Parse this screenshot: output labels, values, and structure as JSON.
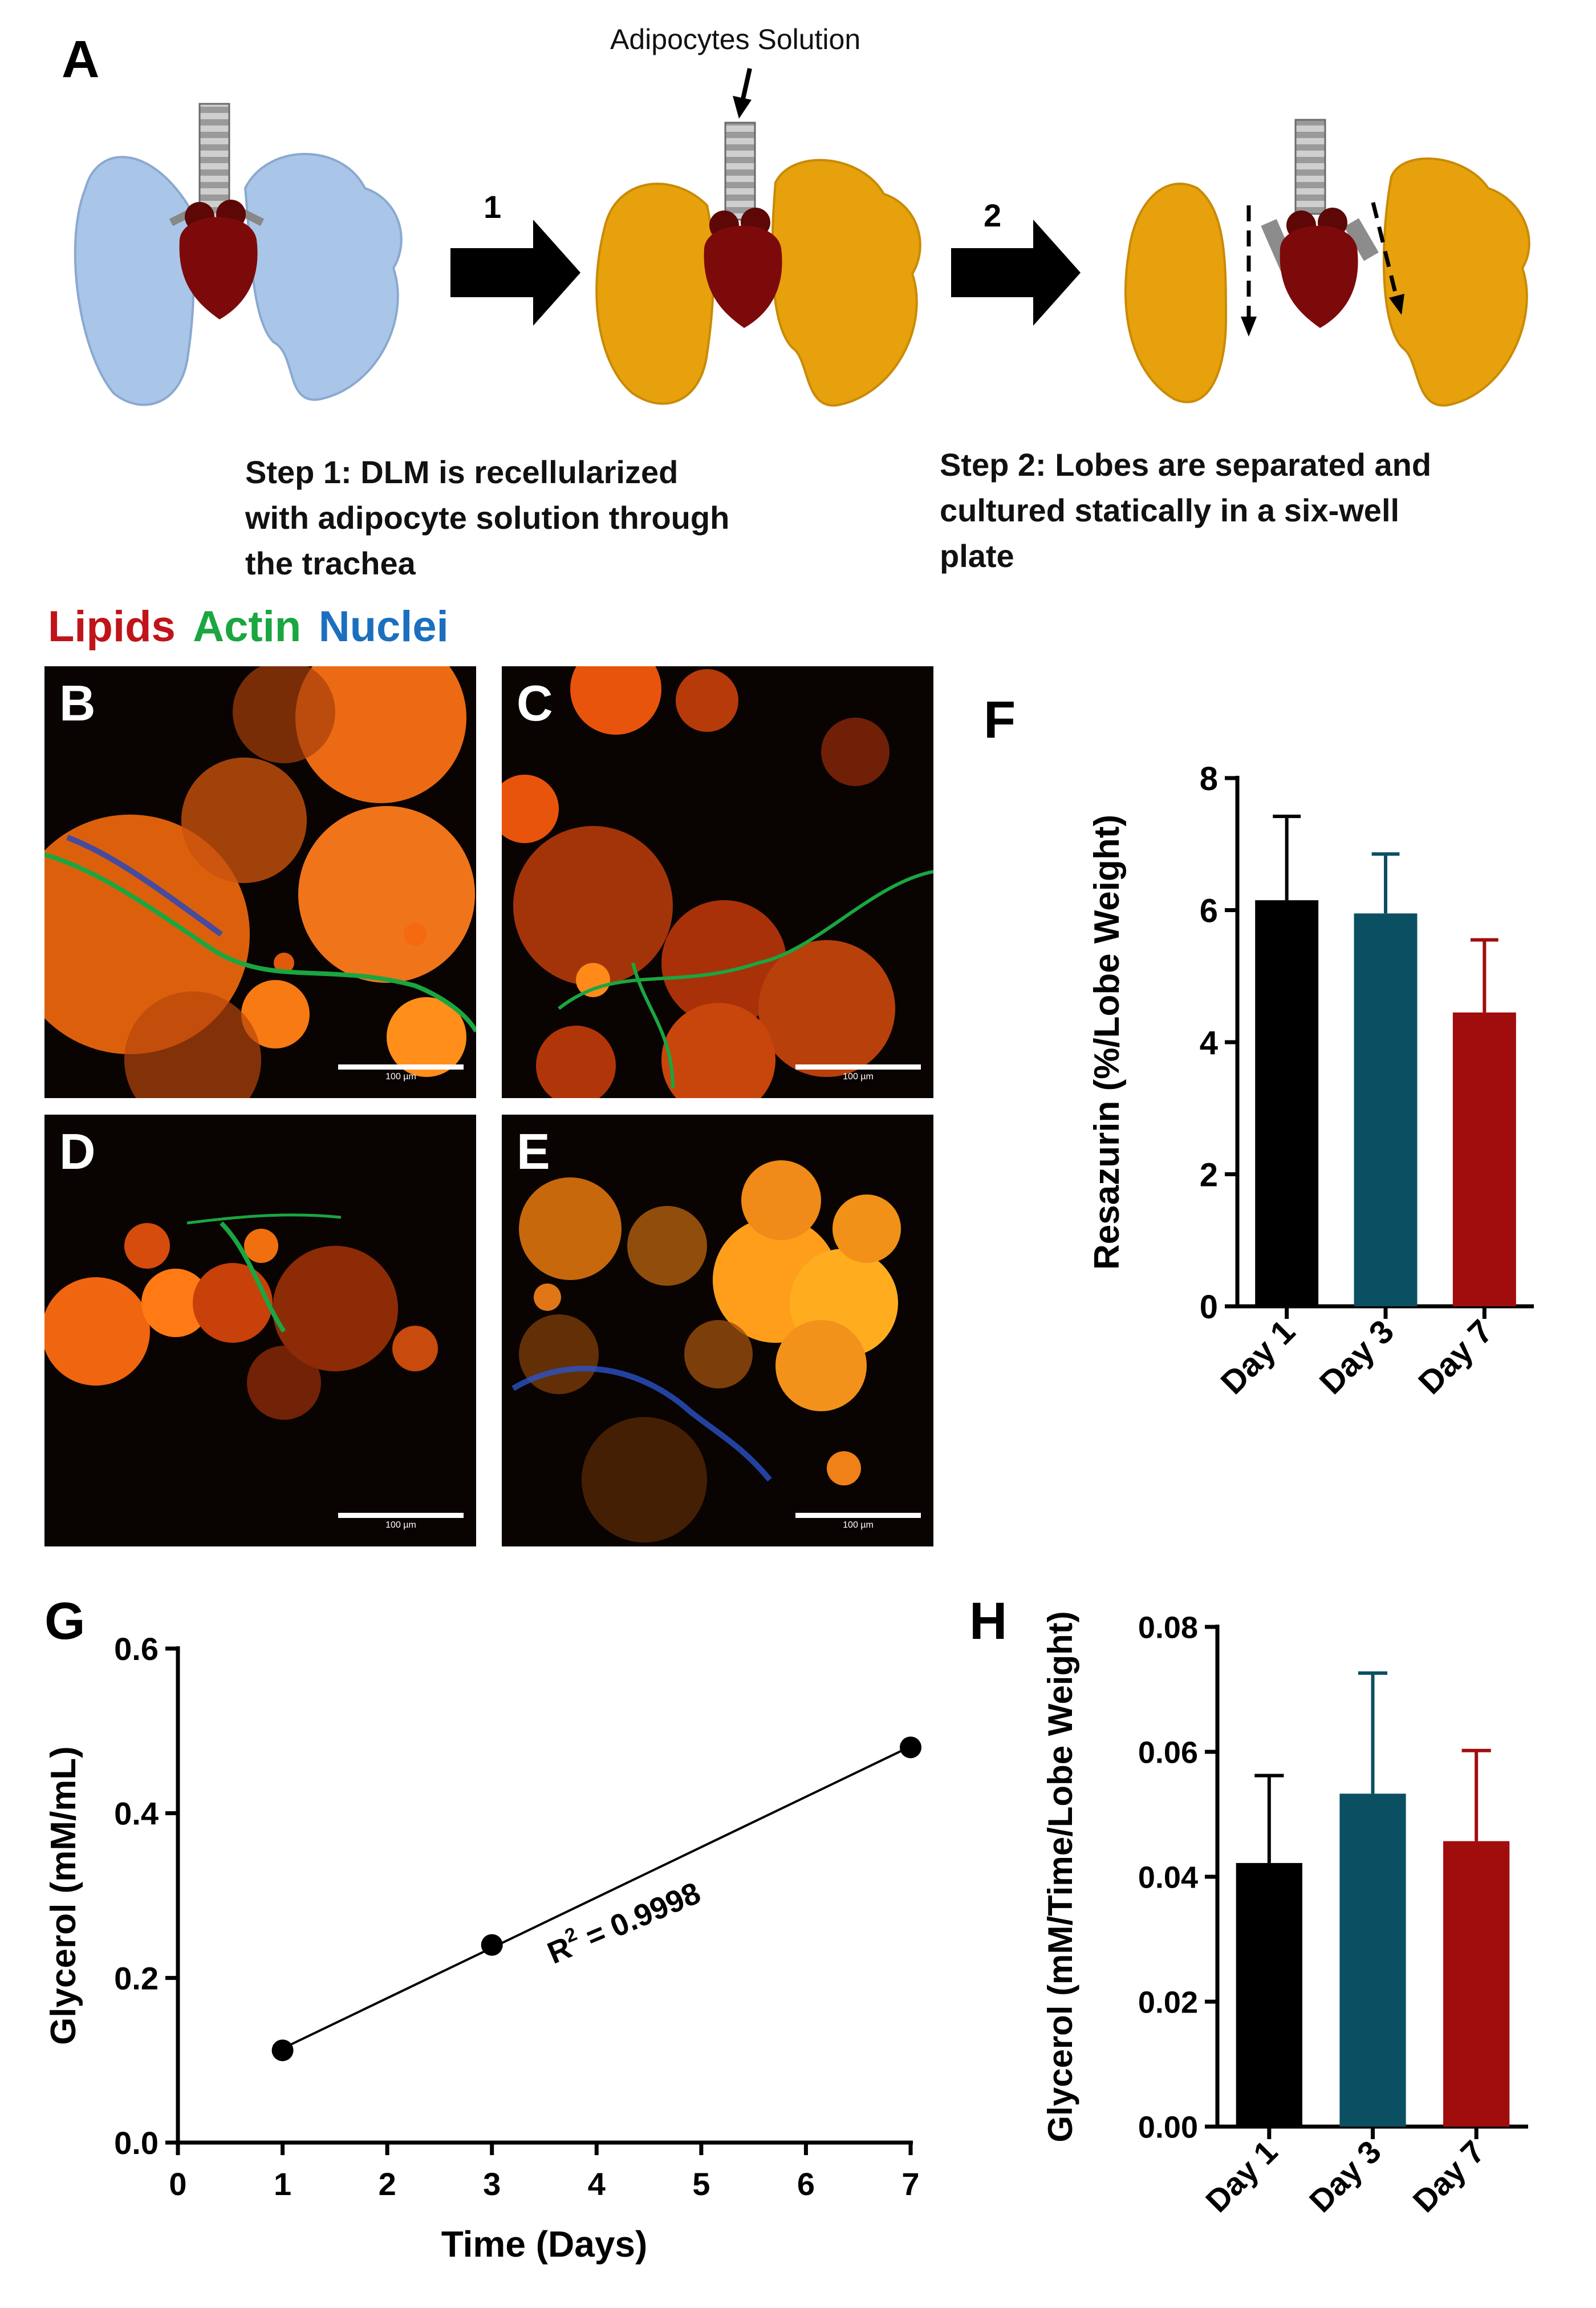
{
  "panels": {
    "A": "A",
    "B": "B",
    "C": "C",
    "D": "D",
    "E": "E",
    "F": "F",
    "G": "G",
    "H": "H"
  },
  "schematic": {
    "top_label": "Adipocytes Solution",
    "arrow1": "1",
    "arrow2": "2",
    "step1": [
      "Step 1: DLM is recellularized",
      "with adipocyte solution through",
      "the trachea"
    ],
    "step2": [
      "Step 2: Lobes are separated and",
      "cultured statically in a six-well",
      "plate"
    ]
  },
  "stain_legend": {
    "lipids": "Lipids",
    "actin": "Actin",
    "nuclei": "Nuclei"
  },
  "micrographs": {
    "scale_label": "100 µm"
  },
  "colors": {
    "lung_blue": "#a9c6e8",
    "lung_gold": "#e6a10d",
    "heart_red": "#7d0a0a",
    "lipids_red": "#c0141a",
    "actin_green": "#1aa640",
    "nuclei_blue": "#1c6fbf",
    "day1_bar": "#000000",
    "day3_bar": "#0b4f63",
    "day7_bar": "#a10d0d"
  },
  "chart_data": [
    {
      "panel": "F",
      "type": "bar",
      "categories": [
        "Day 1",
        "Day 3",
        "Day 7"
      ],
      "values": [
        6.15,
        5.95,
        4.45
      ],
      "errors": [
        1.27,
        0.9,
        1.1
      ],
      "ylabel": "Resazurin (%/Lobe Weight)",
      "ylim": [
        0,
        8
      ],
      "yticks": [
        "0",
        "2",
        "4",
        "6",
        "8"
      ]
    },
    {
      "panel": "G",
      "type": "scatter",
      "x": [
        1,
        3,
        7
      ],
      "y": [
        0.112,
        0.24,
        0.48
      ],
      "xlabel": "Time (Days)",
      "ylabel": "Glycerol (mM/mL)",
      "xlim": [
        0,
        7
      ],
      "ylim": [
        0,
        0.6
      ],
      "xticks": [
        "0",
        "1",
        "2",
        "3",
        "4",
        "5",
        "6",
        "7"
      ],
      "yticks": [
        "0.0",
        "0.2",
        "0.4",
        "0.6"
      ],
      "fit_line": true,
      "annotation_r": "R",
      "annotation_sup": "2",
      "annotation_val": " = 0.9998"
    },
    {
      "panel": "H",
      "type": "bar",
      "categories": [
        "Day 1",
        "Day 3",
        "Day 7"
      ],
      "values": [
        0.0422,
        0.0533,
        0.0457
      ],
      "errors": [
        0.014,
        0.0193,
        0.0145
      ],
      "ylabel": "Glycerol (mM/Time/Lobe Weight)",
      "ylim": [
        0,
        0.08
      ],
      "yticks": [
        "0.00",
        "0.02",
        "0.04",
        "0.06",
        "0.08"
      ]
    }
  ]
}
